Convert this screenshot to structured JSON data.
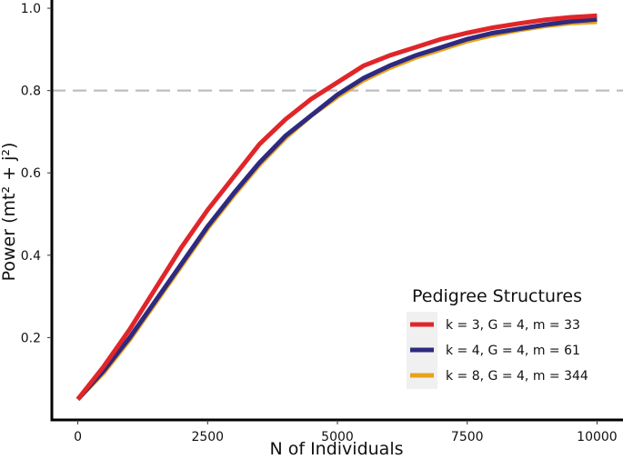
{
  "chart_data": {
    "type": "line",
    "title": "",
    "xlabel": "N of Individuals",
    "ylabel": "Power (mt² + j²)",
    "xlim": [
      -500,
      10500
    ],
    "ylim": [
      0.0,
      1.02
    ],
    "x_ticks": [
      0,
      2500,
      5000,
      7500,
      10000
    ],
    "x_tick_labels": [
      "0",
      "2500",
      "5000",
      "7500",
      "10000"
    ],
    "y_ticks": [
      0.2,
      0.4,
      0.6,
      0.8,
      1.0
    ],
    "y_tick_labels": [
      "0.2",
      "0.4",
      "0.6",
      "0.8",
      "1.0"
    ],
    "grid": false,
    "reference_line": {
      "y": 0.8,
      "style": "dashed",
      "color": "#bdbdbd"
    },
    "legend": {
      "title": "Pedigree Structures",
      "position": "bottom-right"
    },
    "x": [
      0,
      500,
      1000,
      1500,
      2000,
      2500,
      3000,
      3500,
      4000,
      4500,
      5000,
      5500,
      6000,
      6500,
      7000,
      7500,
      8000,
      8500,
      9000,
      9500,
      10000
    ],
    "series": [
      {
        "name": "k = 3, G = 4, m = 33",
        "color": "#e0262a",
        "values": [
          0.05,
          0.13,
          0.22,
          0.32,
          0.42,
          0.51,
          0.59,
          0.67,
          0.73,
          0.78,
          0.82,
          0.86,
          0.885,
          0.905,
          0.925,
          0.94,
          0.953,
          0.963,
          0.972,
          0.978,
          0.982
        ]
      },
      {
        "name": "k = 4, G = 4, m = 61",
        "color": "#2e2a80",
        "values": [
          0.05,
          0.12,
          0.2,
          0.29,
          0.38,
          0.47,
          0.55,
          0.625,
          0.69,
          0.74,
          0.79,
          0.83,
          0.86,
          0.885,
          0.905,
          0.925,
          0.94,
          0.95,
          0.96,
          0.968,
          0.973
        ]
      },
      {
        "name": "k = 8, G = 4, m = 344",
        "color": "#e8a31c",
        "values": [
          0.05,
          0.115,
          0.195,
          0.285,
          0.375,
          0.465,
          0.545,
          0.62,
          0.685,
          0.74,
          0.785,
          0.825,
          0.855,
          0.88,
          0.9,
          0.92,
          0.935,
          0.947,
          0.957,
          0.964,
          0.967
        ]
      }
    ]
  }
}
